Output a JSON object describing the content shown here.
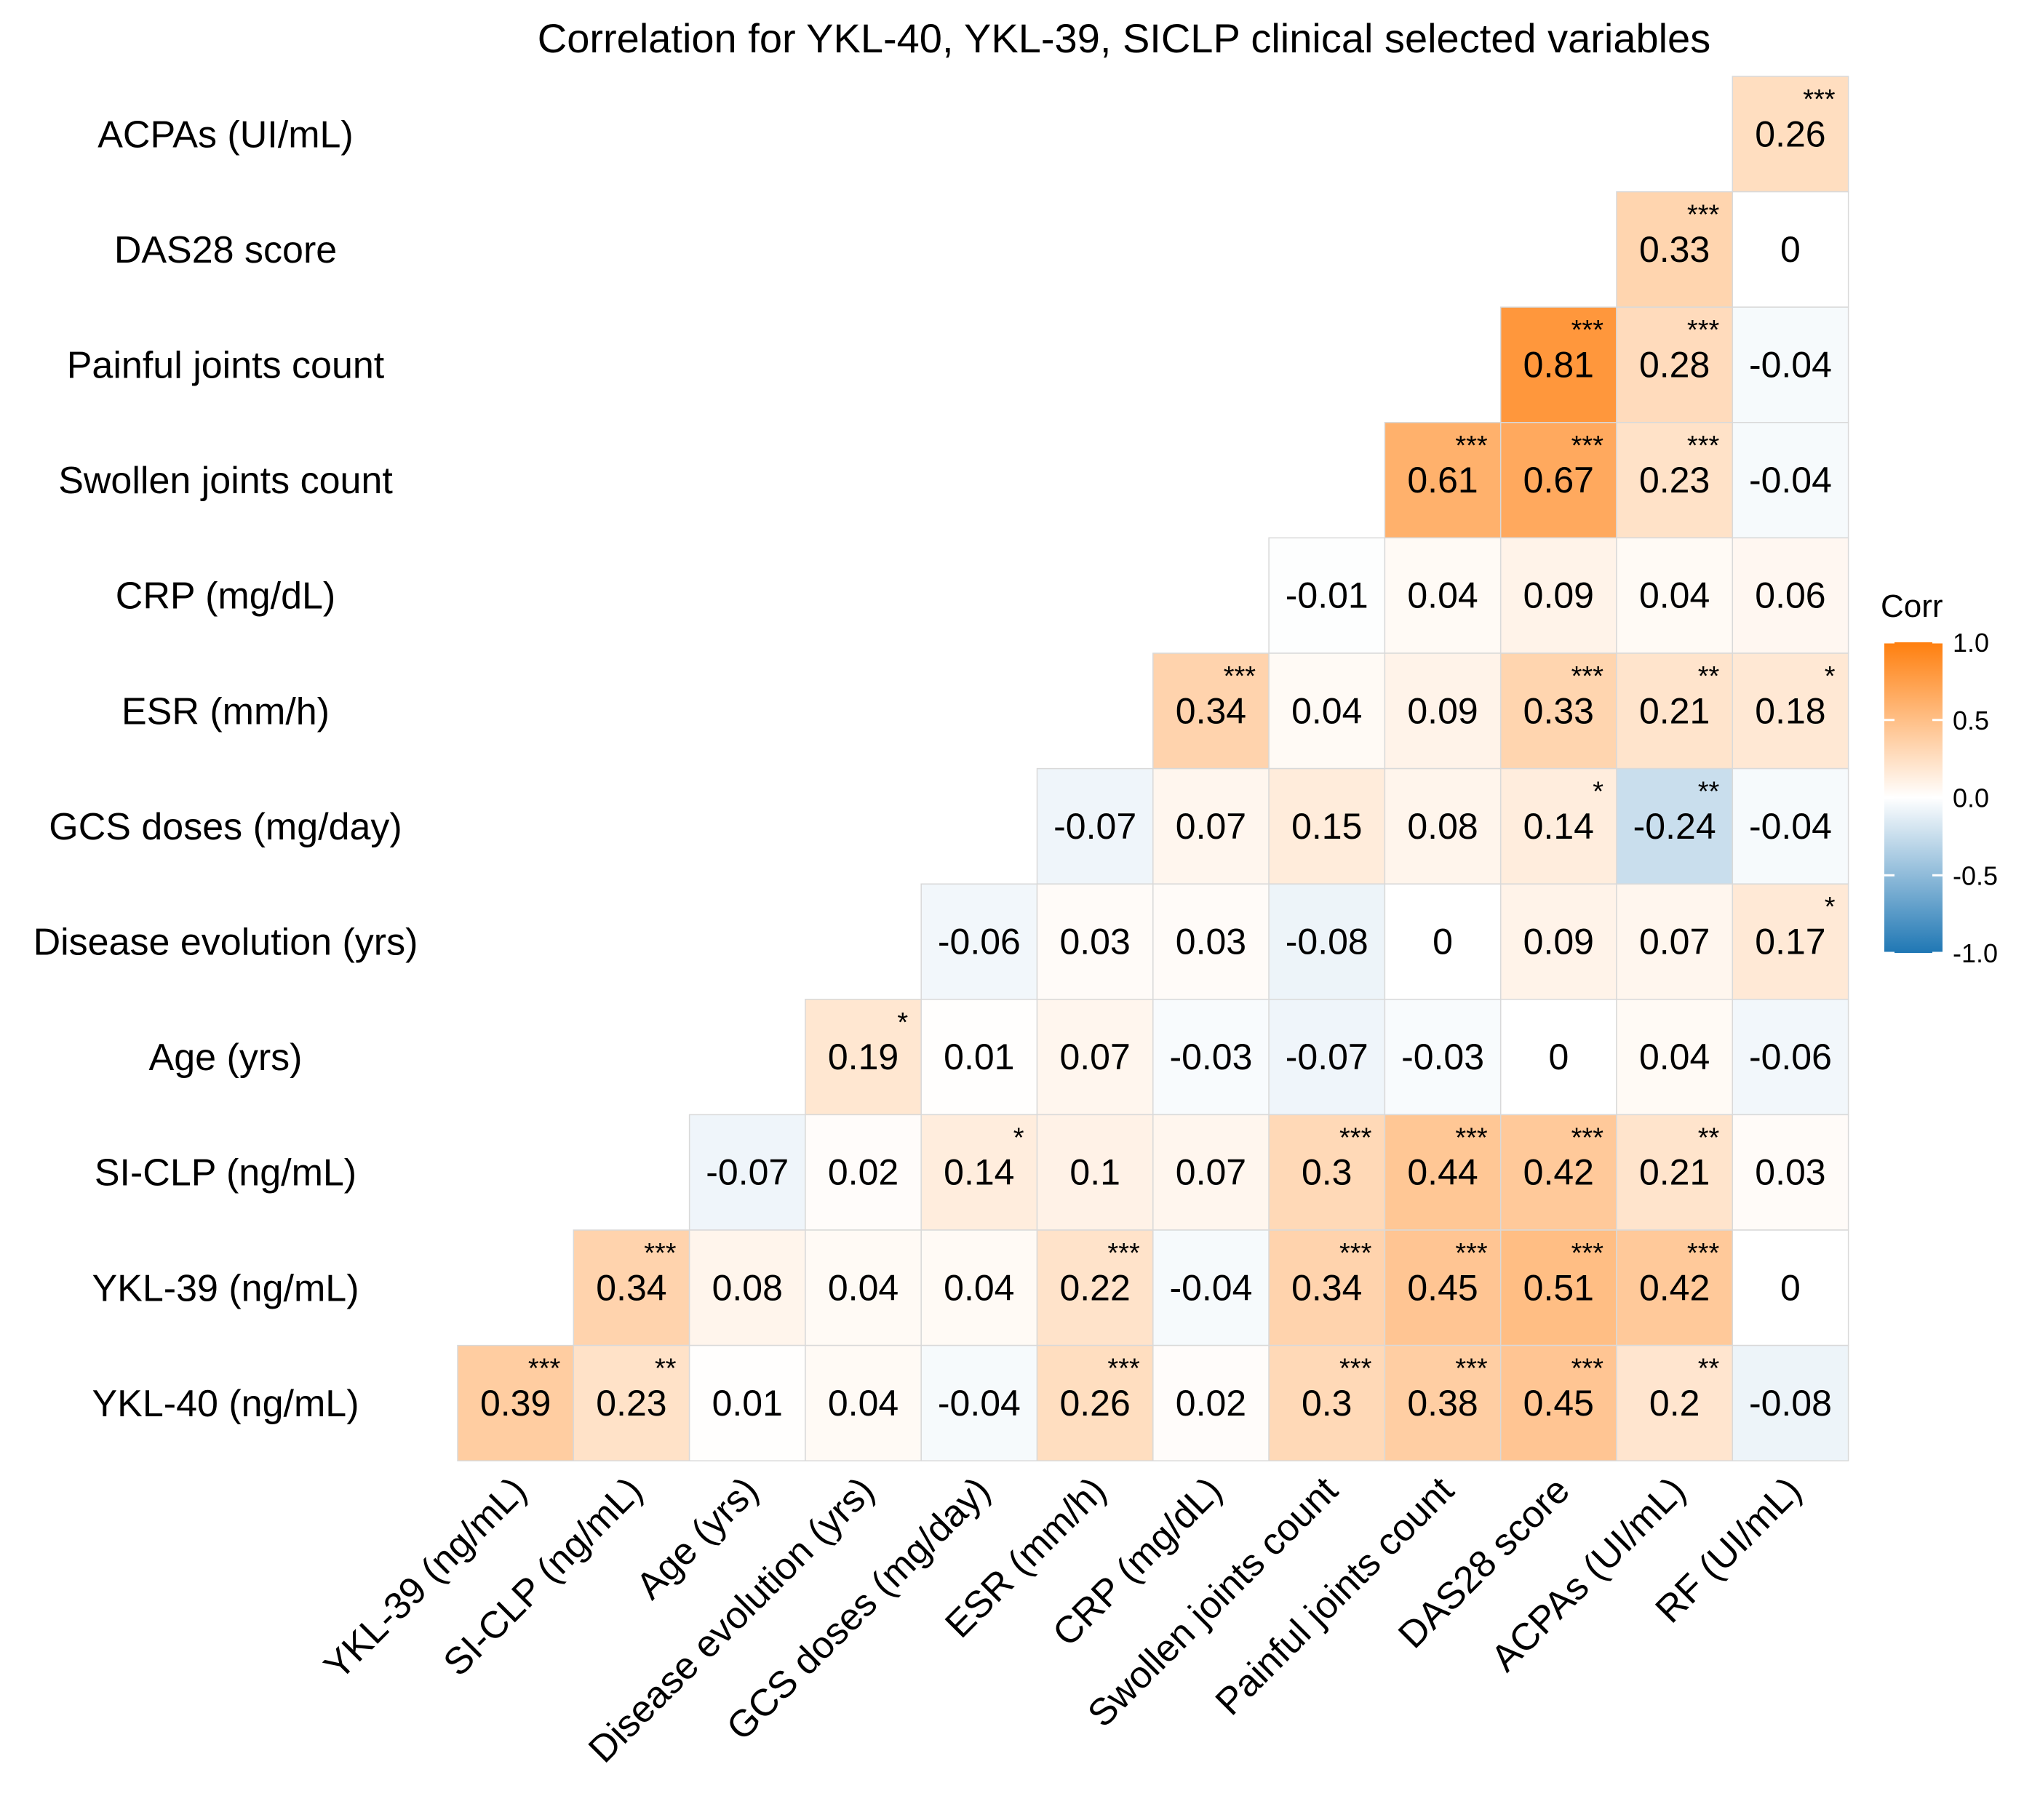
{
  "chart_data": {
    "type": "heatmap",
    "title": "Correlation for YKL-40, YKL-39, SICLP clinical selected variables",
    "x_labels": [
      "YKL-39 (ng/mL)",
      "SI-CLP (ng/mL)",
      "Age (yrs)",
      "Disease evolution (yrs)",
      "GCS doses (mg/day)",
      "ESR (mm/h)",
      "CRP (mg/dL)",
      "Swollen joints count",
      "Painful joints count",
      "DAS28 score",
      "ACPAs (UI/mL)",
      "RF (UI/mL)"
    ],
    "y_labels": [
      "ACPAs (UI/mL)",
      "DAS28 score",
      "Painful joints count",
      "Swollen joints count",
      "CRP (mg/dL)",
      "ESR (mm/h)",
      "GCS doses (mg/day)",
      "Disease evolution (yrs)",
      "Age (yrs)",
      "SI-CLP (ng/mL)",
      "YKL-39 (ng/mL)",
      "YKL-40 (ng/mL)"
    ],
    "rows": [
      {
        "y": "ACPAs (UI/mL)",
        "values": [
          null,
          null,
          null,
          null,
          null,
          null,
          null,
          null,
          null,
          null,
          null,
          0.26
        ],
        "labels": [
          "",
          "",
          "",
          "",
          "",
          "",
          "",
          "",
          "",
          "",
          "",
          "0.26"
        ],
        "stars": [
          "",
          "",
          "",
          "",
          "",
          "",
          "",
          "",
          "",
          "",
          "",
          "***"
        ]
      },
      {
        "y": "DAS28 score",
        "values": [
          null,
          null,
          null,
          null,
          null,
          null,
          null,
          null,
          null,
          null,
          0.33,
          0
        ],
        "labels": [
          "",
          "",
          "",
          "",
          "",
          "",
          "",
          "",
          "",
          "",
          "0.33",
          "0"
        ],
        "stars": [
          "",
          "",
          "",
          "",
          "",
          "",
          "",
          "",
          "",
          "",
          "***",
          ""
        ]
      },
      {
        "y": "Painful joints count",
        "values": [
          null,
          null,
          null,
          null,
          null,
          null,
          null,
          null,
          null,
          0.81,
          0.28,
          -0.04
        ],
        "labels": [
          "",
          "",
          "",
          "",
          "",
          "",
          "",
          "",
          "",
          "0.81",
          "0.28",
          "-0.04"
        ],
        "stars": [
          "",
          "",
          "",
          "",
          "",
          "",
          "",
          "",
          "",
          "***",
          "***",
          ""
        ]
      },
      {
        "y": "Swollen joints count",
        "values": [
          null,
          null,
          null,
          null,
          null,
          null,
          null,
          null,
          0.61,
          0.67,
          0.23,
          -0.04
        ],
        "labels": [
          "",
          "",
          "",
          "",
          "",
          "",
          "",
          "",
          "0.61",
          "0.67",
          "0.23",
          "-0.04"
        ],
        "stars": [
          "",
          "",
          "",
          "",
          "",
          "",
          "",
          "",
          "***",
          "***",
          "***",
          ""
        ]
      },
      {
        "y": "CRP (mg/dL)",
        "values": [
          null,
          null,
          null,
          null,
          null,
          null,
          null,
          -0.01,
          0.04,
          0.09,
          0.04,
          0.06
        ],
        "labels": [
          "",
          "",
          "",
          "",
          "",
          "",
          "",
          "-0.01",
          "0.04",
          "0.09",
          "0.04",
          "0.06"
        ],
        "stars": [
          "",
          "",
          "",
          "",
          "",
          "",
          "",
          "",
          "",
          "",
          "",
          ""
        ]
      },
      {
        "y": "ESR (mm/h)",
        "values": [
          null,
          null,
          null,
          null,
          null,
          null,
          0.34,
          0.04,
          0.09,
          0.33,
          0.21,
          0.18
        ],
        "labels": [
          "",
          "",
          "",
          "",
          "",
          "",
          "0.34",
          "0.04",
          "0.09",
          "0.33",
          "0.21",
          "0.18"
        ],
        "stars": [
          "",
          "",
          "",
          "",
          "",
          "",
          "***",
          "",
          "",
          "***",
          "**",
          "*"
        ]
      },
      {
        "y": "GCS doses (mg/day)",
        "values": [
          null,
          null,
          null,
          null,
          null,
          -0.07,
          0.07,
          0.15,
          0.08,
          0.14,
          -0.24,
          -0.04
        ],
        "labels": [
          "",
          "",
          "",
          "",
          "",
          "-0.07",
          "0.07",
          "0.15",
          "0.08",
          "0.14",
          "-0.24",
          "-0.04"
        ],
        "stars": [
          "",
          "",
          "",
          "",
          "",
          "",
          "",
          "",
          "",
          "*",
          "**",
          ""
        ]
      },
      {
        "y": "Disease evolution (yrs)",
        "values": [
          null,
          null,
          null,
          null,
          -0.06,
          0.03,
          0.03,
          -0.08,
          0,
          0.09,
          0.07,
          0.17
        ],
        "labels": [
          "",
          "",
          "",
          "",
          "-0.06",
          "0.03",
          "0.03",
          "-0.08",
          "0",
          "0.09",
          "0.07",
          "0.17"
        ],
        "stars": [
          "",
          "",
          "",
          "",
          "",
          "",
          "",
          "",
          "",
          "",
          "",
          "*"
        ]
      },
      {
        "y": "Age (yrs)",
        "values": [
          null,
          null,
          null,
          0.19,
          0.01,
          0.07,
          -0.03,
          -0.07,
          -0.03,
          0,
          0.04,
          -0.06
        ],
        "labels": [
          "",
          "",
          "",
          "0.19",
          "0.01",
          "0.07",
          "-0.03",
          "-0.07",
          "-0.03",
          "0",
          "0.04",
          "-0.06"
        ],
        "stars": [
          "",
          "",
          "",
          "*",
          "",
          "",
          "",
          "",
          "",
          "",
          "",
          ""
        ]
      },
      {
        "y": "SI-CLP (ng/mL)",
        "values": [
          null,
          null,
          -0.07,
          0.02,
          0.14,
          0.1,
          0.07,
          0.3,
          0.44,
          0.42,
          0.21,
          0.03
        ],
        "labels": [
          "",
          "",
          "-0.07",
          "0.02",
          "0.14",
          "0.1",
          "0.07",
          "0.3",
          "0.44",
          "0.42",
          "0.21",
          "0.03"
        ],
        "stars": [
          "",
          "",
          "",
          "",
          "*",
          "",
          "",
          "***",
          "***",
          "***",
          "**",
          ""
        ]
      },
      {
        "y": "YKL-39 (ng/mL)",
        "values": [
          null,
          0.34,
          0.08,
          0.04,
          0.04,
          0.22,
          -0.04,
          0.34,
          0.45,
          0.51,
          0.42,
          0
        ],
        "labels": [
          "",
          "0.34",
          "0.08",
          "0.04",
          "0.04",
          "0.22",
          "-0.04",
          "0.34",
          "0.45",
          "0.51",
          "0.42",
          "0"
        ],
        "stars": [
          "",
          "***",
          "",
          "",
          "",
          "***",
          "",
          "***",
          "***",
          "***",
          "***",
          ""
        ]
      },
      {
        "y": "YKL-40 (ng/mL)",
        "values": [
          0.39,
          0.23,
          0.01,
          0.04,
          -0.04,
          0.26,
          0.02,
          0.3,
          0.38,
          0.45,
          0.2,
          -0.08
        ],
        "labels": [
          "0.39",
          "0.23",
          "0.01",
          "0.04",
          "-0.04",
          "0.26",
          "0.02",
          "0.3",
          "0.38",
          "0.45",
          "0.2",
          "-0.08"
        ],
        "stars": [
          "***",
          "**",
          "",
          "",
          "",
          "***",
          "",
          "***",
          "***",
          "***",
          "**",
          ""
        ]
      }
    ],
    "legend": {
      "title": "Corr",
      "placement": "right",
      "ticks": [
        "1.0",
        "0.5",
        "0.0",
        "-0.5",
        "-1.0"
      ],
      "tick_values": [
        1.0,
        0.5,
        0.0,
        -0.5,
        -1.0
      ],
      "range": [
        -1.0,
        1.0
      ]
    },
    "colors": {
      "high": "#FF7F0E",
      "mid": "#FFFFFF",
      "low": "#1F77B4",
      "grid_line": "#D9D9D9"
    },
    "grid": false
  }
}
